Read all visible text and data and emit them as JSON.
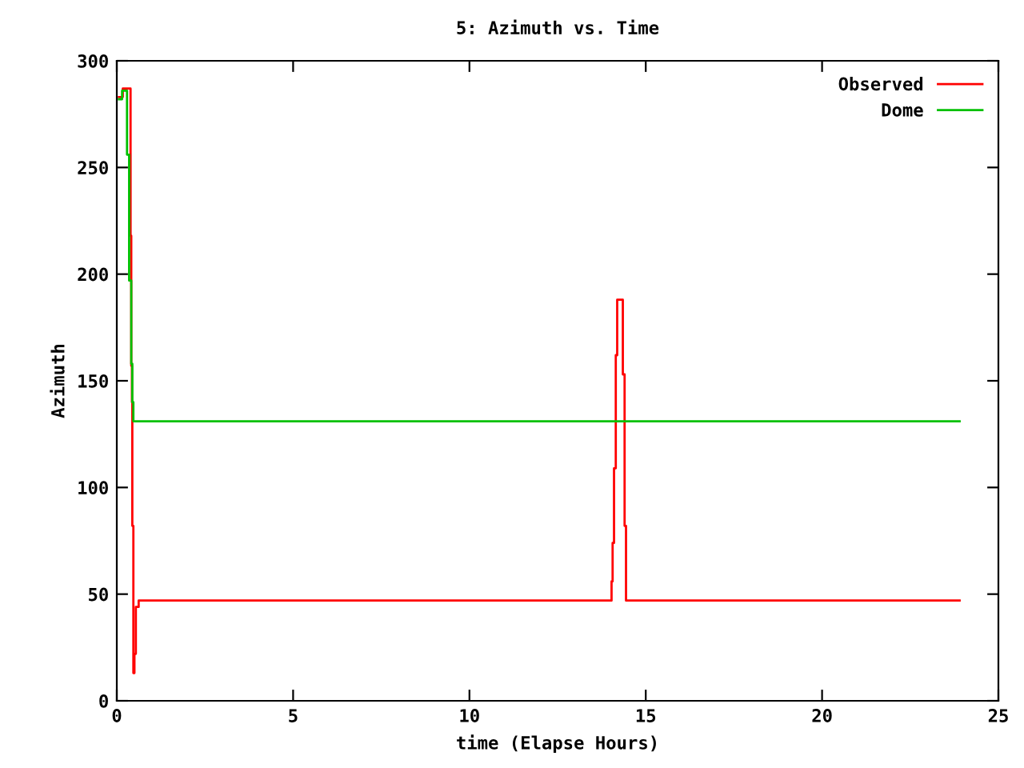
{
  "chart_data": {
    "type": "step",
    "title": "5: Azimuth vs. Time",
    "xlabel": "time (Elapse Hours)",
    "ylabel": "Azimuth",
    "xlim": [
      0,
      25
    ],
    "xticks": [
      0,
      5,
      10,
      15,
      20,
      25
    ],
    "ylim": [
      0,
      300
    ],
    "yticks": [
      0,
      50,
      100,
      150,
      200,
      250,
      300
    ],
    "grid": false,
    "legend": "top right",
    "marker": "none",
    "line_style": "solid",
    "series": [
      {
        "name": "Observed",
        "color": "#ff0000",
        "x": [
          0.06,
          0.17,
          0.39,
          0.41,
          0.43,
          0.44,
          0.47,
          0.5,
          0.54,
          0.62,
          14.03,
          14.06,
          14.1,
          14.15,
          14.19,
          14.35,
          14.4,
          14.44,
          23.9
        ],
        "values": [
          283,
          287,
          218,
          157,
          140,
          82,
          13,
          22,
          44,
          47,
          56,
          74,
          109,
          162,
          188,
          153,
          82,
          47,
          47
        ]
      },
      {
        "name": "Dome",
        "color": "#00c000",
        "x": [
          0.06,
          0.15,
          0.29,
          0.35,
          0.41,
          0.44,
          0.47,
          23.9
        ],
        "values": [
          282,
          286,
          256,
          197,
          158,
          140,
          131,
          131
        ]
      }
    ]
  }
}
